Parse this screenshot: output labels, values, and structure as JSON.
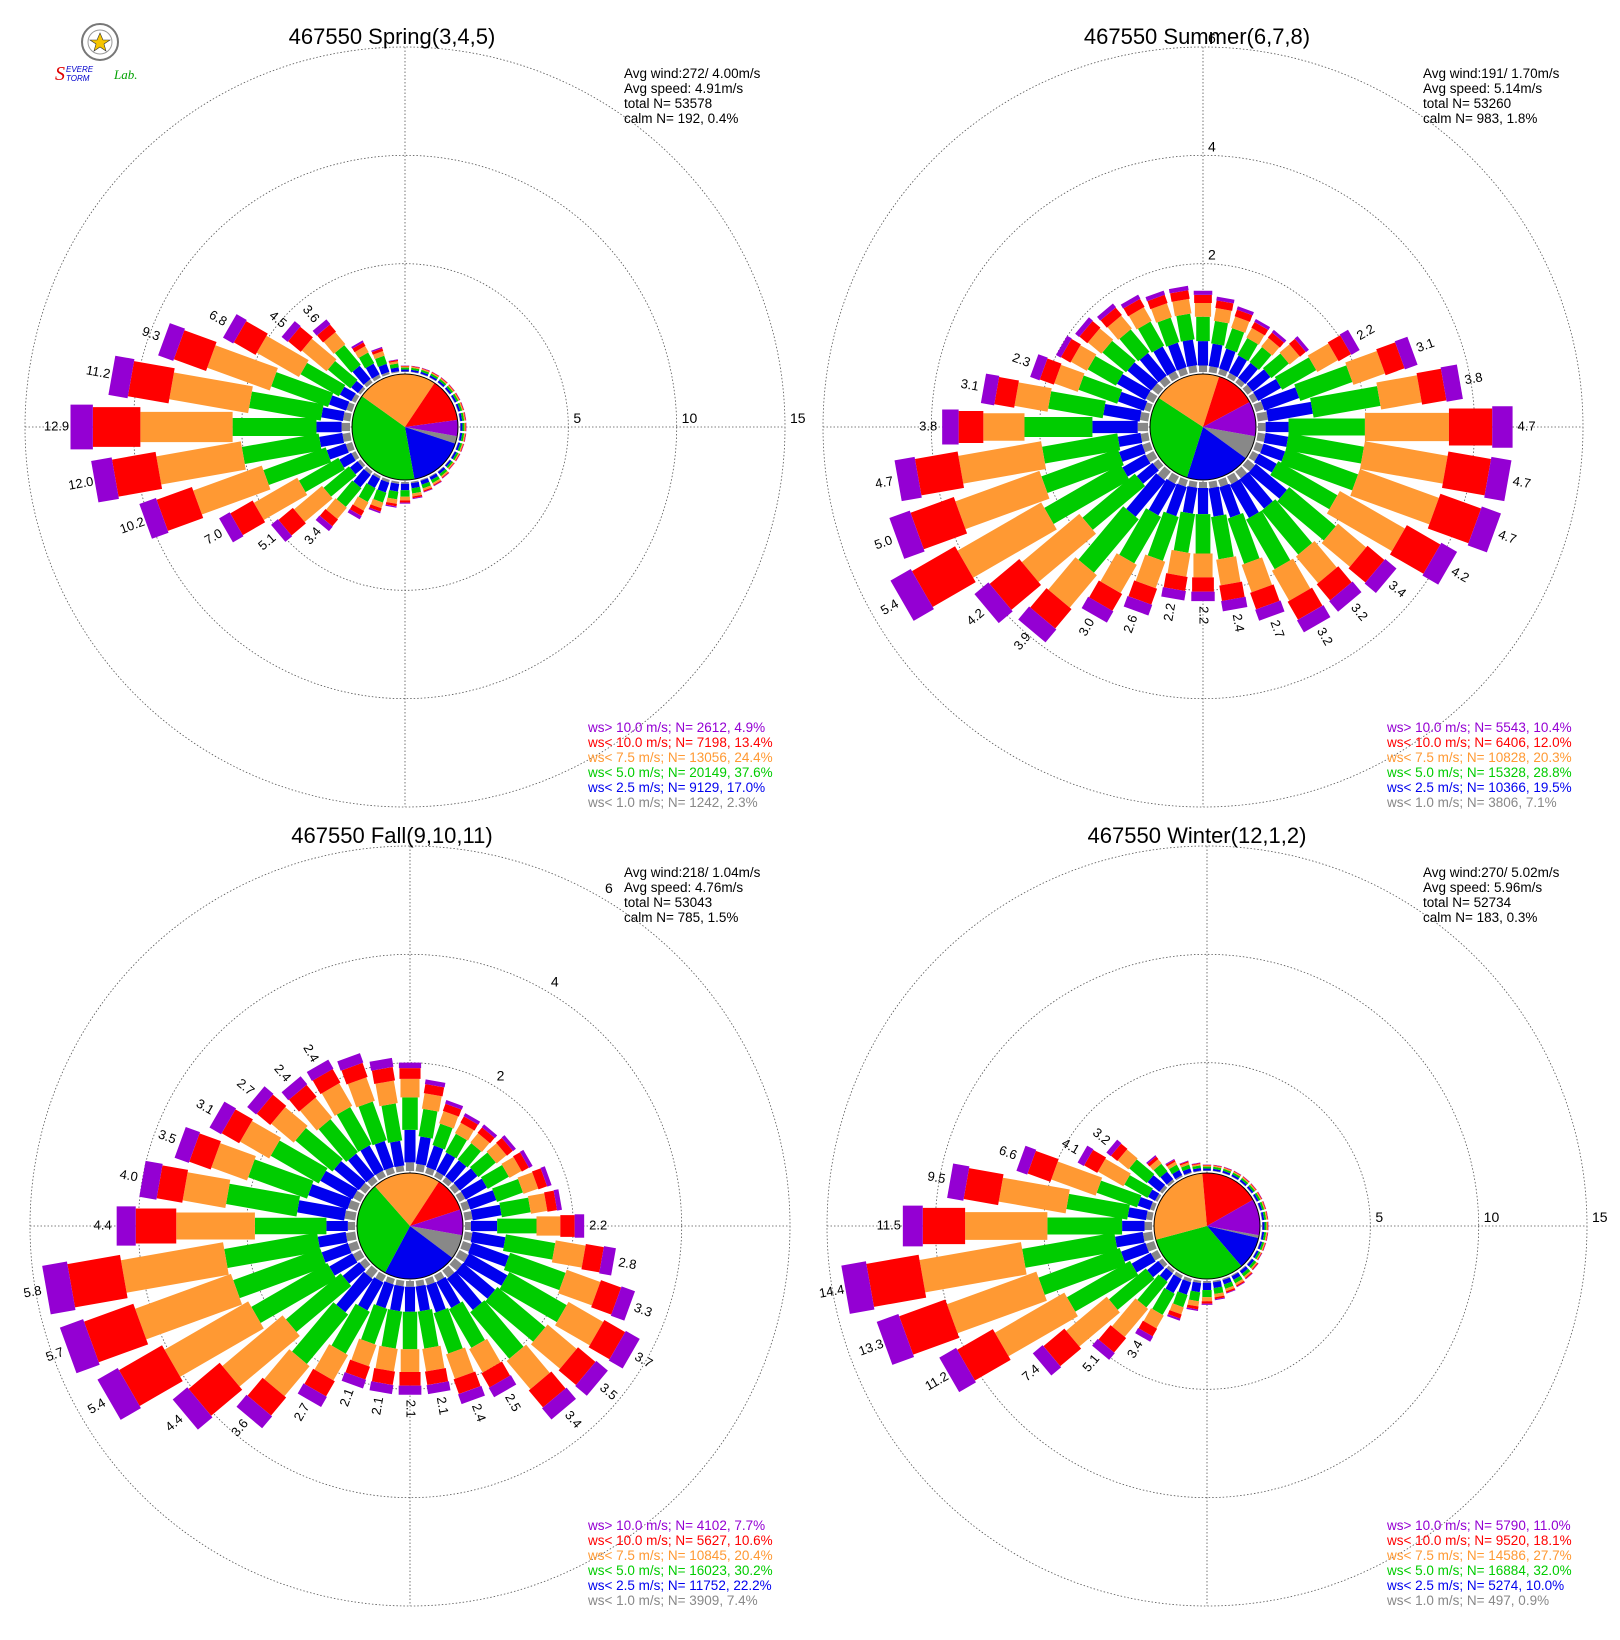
{
  "logo": {
    "text_parts": [
      "S",
      "EVERE",
      "TORM",
      "Lab."
    ],
    "colors": [
      "#e00000",
      "#0000cc",
      "#00a000"
    ]
  },
  "speed_classes": [
    {
      "key": "gt10",
      "color": "#9400d3"
    },
    {
      "key": "lt10",
      "color": "#ff0000"
    },
    {
      "key": "lt7_5",
      "color": "#ff9933"
    },
    {
      "key": "lt5",
      "color": "#00cc00"
    },
    {
      "key": "lt2_5",
      "color": "#0000ee"
    },
    {
      "key": "lt1",
      "color": "#888888"
    }
  ],
  "chart_data": [
    {
      "type": "wind-rose",
      "title": "467550 Spring(3,4,5)",
      "stats": [
        "Avg wind:272/ 4.00m/s",
        "Avg speed: 4.91m/s",
        "total N=      53578",
        "calm N=    192,   0.4%"
      ],
      "rmax": 15,
      "ring_labels": [
        "5",
        "10",
        "15"
      ],
      "ring_label_angle": 90,
      "bar_labels": [
        {
          "dir": 270,
          "label": "12.9"
        },
        {
          "dir": 260,
          "label": "12.0"
        },
        {
          "dir": 280,
          "label": "11.2"
        },
        {
          "dir": 250,
          "label": "10.2"
        },
        {
          "dir": 290,
          "label": "9.3"
        },
        {
          "dir": 240,
          "label": "7.0"
        },
        {
          "dir": 300,
          "label": "6.8"
        },
        {
          "dir": 230,
          "label": "5.1"
        },
        {
          "dir": 310,
          "label": "4.5"
        },
        {
          "dir": 220,
          "label": "3.4"
        },
        {
          "dir": 320,
          "label": "3.6"
        }
      ],
      "pie": [
        2.3,
        17.0,
        37.6,
        24.4,
        13.4,
        4.9
      ],
      "pie_start_dir": 100,
      "legend": [
        "ws> 10.0 m/s; N=  2612,  4.9%",
        "ws< 10.0 m/s; N=  7198, 13.4%",
        "ws<  7.5 m/s; N= 13056, 24.4%",
        "ws<  5.0 m/s; N= 20149, 37.6%",
        "ws<  2.5 m/s; N=  9129, 17.0%",
        "ws<  1.0 m/s; N=  1242,  2.3%"
      ],
      "directions": [
        {
          "dir": 0,
          "total": 0.3
        },
        {
          "dir": 10,
          "total": 0.3
        },
        {
          "dir": 20,
          "total": 0.3
        },
        {
          "dir": 30,
          "total": 0.3
        },
        {
          "dir": 40,
          "total": 0.3
        },
        {
          "dir": 50,
          "total": 0.3
        },
        {
          "dir": 60,
          "total": 0.3
        },
        {
          "dir": 70,
          "total": 0.3
        },
        {
          "dir": 80,
          "total": 0.3
        },
        {
          "dir": 90,
          "total": 0.3
        },
        {
          "dir": 100,
          "total": 0.3
        },
        {
          "dir": 110,
          "total": 0.3
        },
        {
          "dir": 120,
          "total": 0.3
        },
        {
          "dir": 130,
          "total": 0.3
        },
        {
          "dir": 140,
          "total": 0.4
        },
        {
          "dir": 150,
          "total": 0.5
        },
        {
          "dir": 160,
          "total": 0.6
        },
        {
          "dir": 170,
          "total": 0.8
        },
        {
          "dir": 180,
          "total": 1.0
        },
        {
          "dir": 190,
          "total": 1.2
        },
        {
          "dir": 200,
          "total": 1.6
        },
        {
          "dir": 210,
          "total": 2.2
        },
        {
          "dir": 220,
          "total": 3.4
        },
        {
          "dir": 230,
          "total": 5.1
        },
        {
          "dir": 240,
          "total": 7.0
        },
        {
          "dir": 250,
          "total": 10.2
        },
        {
          "dir": 260,
          "total": 12.0
        },
        {
          "dir": 270,
          "total": 12.9
        },
        {
          "dir": 280,
          "total": 11.2
        },
        {
          "dir": 290,
          "total": 9.3
        },
        {
          "dir": 300,
          "total": 6.8
        },
        {
          "dir": 310,
          "total": 4.5
        },
        {
          "dir": 320,
          "total": 3.6
        },
        {
          "dir": 330,
          "total": 1.9
        },
        {
          "dir": 340,
          "total": 1.3
        },
        {
          "dir": 350,
          "total": 0.6
        }
      ]
    },
    {
      "type": "wind-rose",
      "title": "467550 Summer(6,7,8)",
      "stats": [
        "Avg wind:191/ 1.70m/s",
        "Avg speed: 5.14m/s",
        "total N=      53260",
        "calm N=    983,   1.8%"
      ],
      "rmax": 6,
      "ring_labels": [
        "2",
        "4",
        "6"
      ],
      "ring_label_angle": 0,
      "bar_labels": [
        {
          "dir": 290,
          "label": "2.3"
        },
        {
          "dir": 280,
          "label": "3.1"
        },
        {
          "dir": 270,
          "label": "3.8"
        },
        {
          "dir": 260,
          "label": "4.7"
        },
        {
          "dir": 250,
          "label": "5.0"
        },
        {
          "dir": 240,
          "label": "5.4"
        },
        {
          "dir": 230,
          "label": "4.2"
        },
        {
          "dir": 220,
          "label": "3.9"
        },
        {
          "dir": 210,
          "label": "3.0"
        },
        {
          "dir": 200,
          "label": "2.6"
        },
        {
          "dir": 190,
          "label": "2.2"
        },
        {
          "dir": 180,
          "label": "2.2"
        },
        {
          "dir": 170,
          "label": "2.4"
        },
        {
          "dir": 160,
          "label": "2.7"
        },
        {
          "dir": 150,
          "label": "3.2"
        },
        {
          "dir": 140,
          "label": "3.2"
        },
        {
          "dir": 130,
          "label": "3.4"
        },
        {
          "dir": 120,
          "label": "4.2"
        },
        {
          "dir": 110,
          "label": "4.7"
        },
        {
          "dir": 100,
          "label": "4.7"
        },
        {
          "dir": 90,
          "label": "4.7"
        },
        {
          "dir": 80,
          "label": "3.8"
        },
        {
          "dir": 70,
          "label": "3.1"
        },
        {
          "dir": 60,
          "label": "2.2"
        }
      ],
      "pie": [
        7.1,
        19.5,
        28.8,
        20.3,
        12.0,
        10.4
      ],
      "pie_start_dir": 100,
      "legend": [
        "ws> 10.0 m/s; N=  5543, 10.4%",
        "ws< 10.0 m/s; N=  6406, 12.0%",
        "ws<  7.5 m/s; N= 10828, 20.3%",
        "ws<  5.0 m/s; N= 15328, 28.8%",
        "ws<  2.5 m/s; N= 10366, 19.5%",
        "ws<  1.0 m/s; N=  3806,  7.1%"
      ],
      "directions": [
        {
          "dir": 0,
          "total": 1.5
        },
        {
          "dir": 10,
          "total": 1.4
        },
        {
          "dir": 20,
          "total": 1.3
        },
        {
          "dir": 30,
          "total": 1.2
        },
        {
          "dir": 40,
          "total": 1.2
        },
        {
          "dir": 50,
          "total": 1.4
        },
        {
          "dir": 60,
          "total": 2.2
        },
        {
          "dir": 70,
          "total": 3.1
        },
        {
          "dir": 80,
          "total": 3.8
        },
        {
          "dir": 90,
          "total": 4.7
        },
        {
          "dir": 100,
          "total": 4.7
        },
        {
          "dir": 110,
          "total": 4.7
        },
        {
          "dir": 120,
          "total": 4.2
        },
        {
          "dir": 130,
          "total": 3.4
        },
        {
          "dir": 140,
          "total": 3.2
        },
        {
          "dir": 150,
          "total": 3.2
        },
        {
          "dir": 160,
          "total": 2.7
        },
        {
          "dir": 170,
          "total": 2.4
        },
        {
          "dir": 180,
          "total": 2.2
        },
        {
          "dir": 190,
          "total": 2.2
        },
        {
          "dir": 200,
          "total": 2.6
        },
        {
          "dir": 210,
          "total": 3.0
        },
        {
          "dir": 220,
          "total": 3.9
        },
        {
          "dir": 230,
          "total": 4.2
        },
        {
          "dir": 240,
          "total": 5.4
        },
        {
          "dir": 250,
          "total": 5.0
        },
        {
          "dir": 260,
          "total": 4.7
        },
        {
          "dir": 270,
          "total": 3.8
        },
        {
          "dir": 280,
          "total": 3.1
        },
        {
          "dir": 290,
          "total": 2.3
        },
        {
          "dir": 300,
          "total": 2.0
        },
        {
          "dir": 310,
          "total": 1.9
        },
        {
          "dir": 320,
          "total": 1.8
        },
        {
          "dir": 330,
          "total": 1.7
        },
        {
          "dir": 340,
          "total": 1.6
        },
        {
          "dir": 350,
          "total": 1.6
        }
      ]
    },
    {
      "type": "wind-rose",
      "title": "467550 Fall(9,10,11)",
      "stats": [
        "Avg wind:218/ 1.04m/s",
        "Avg speed: 4.76m/s",
        "total N=      53043",
        "calm N=    785,   1.5%"
      ],
      "rmax": 6,
      "ring_labels": [
        "2",
        "4",
        "6"
      ],
      "ring_label_angle": 30,
      "bar_labels": [
        {
          "dir": 330,
          "label": "2.4"
        },
        {
          "dir": 320,
          "label": "2.4"
        },
        {
          "dir": 310,
          "label": "2.7"
        },
        {
          "dir": 300,
          "label": "3.1"
        },
        {
          "dir": 290,
          "label": "3.5"
        },
        {
          "dir": 280,
          "label": "4.0"
        },
        {
          "dir": 270,
          "label": "4.4"
        },
        {
          "dir": 260,
          "label": "5.8"
        },
        {
          "dir": 250,
          "label": "5.7"
        },
        {
          "dir": 240,
          "label": "5.4"
        },
        {
          "dir": 230,
          "label": "4.4"
        },
        {
          "dir": 220,
          "label": "3.6"
        },
        {
          "dir": 210,
          "label": "2.7"
        },
        {
          "dir": 200,
          "label": "2.1"
        },
        {
          "dir": 190,
          "label": "2.1"
        },
        {
          "dir": 180,
          "label": "2.1"
        },
        {
          "dir": 170,
          "label": "2.1"
        },
        {
          "dir": 160,
          "label": "2.4"
        },
        {
          "dir": 150,
          "label": "2.5"
        },
        {
          "dir": 140,
          "label": "3.4"
        },
        {
          "dir": 130,
          "label": "3.5"
        },
        {
          "dir": 120,
          "label": "3.7"
        },
        {
          "dir": 110,
          "label": "3.3"
        },
        {
          "dir": 100,
          "label": "2.8"
        },
        {
          "dir": 90,
          "label": "2.2"
        }
      ],
      "pie": [
        7.4,
        22.2,
        30.2,
        20.4,
        10.6,
        7.7
      ],
      "pie_start_dir": 100,
      "legend": [
        "ws> 10.0 m/s; N=  4102,  7.7%",
        "ws< 10.0 m/s; N=  5627, 10.6%",
        "ws<  7.5 m/s; N= 10845, 20.4%",
        "ws<  5.0 m/s; N= 16023, 30.2%",
        "ws<  2.5 m/s; N= 11752, 22.2%",
        "ws<  1.0 m/s; N=  3909,  7.4%"
      ],
      "directions": [
        {
          "dir": 0,
          "total": 2.0
        },
        {
          "dir": 10,
          "total": 1.7
        },
        {
          "dir": 20,
          "total": 1.4
        },
        {
          "dir": 30,
          "total": 1.3
        },
        {
          "dir": 40,
          "total": 1.3
        },
        {
          "dir": 50,
          "total": 1.4
        },
        {
          "dir": 60,
          "total": 1.5
        },
        {
          "dir": 70,
          "total": 1.7
        },
        {
          "dir": 80,
          "total": 1.8
        },
        {
          "dir": 90,
          "total": 2.2
        },
        {
          "dir": 100,
          "total": 2.8
        },
        {
          "dir": 110,
          "total": 3.3
        },
        {
          "dir": 120,
          "total": 3.7
        },
        {
          "dir": 130,
          "total": 3.5
        },
        {
          "dir": 140,
          "total": 3.4
        },
        {
          "dir": 150,
          "total": 2.5
        },
        {
          "dir": 160,
          "total": 2.4
        },
        {
          "dir": 170,
          "total": 2.1
        },
        {
          "dir": 180,
          "total": 2.1
        },
        {
          "dir": 190,
          "total": 2.1
        },
        {
          "dir": 200,
          "total": 2.1
        },
        {
          "dir": 210,
          "total": 2.7
        },
        {
          "dir": 220,
          "total": 3.6
        },
        {
          "dir": 230,
          "total": 4.4
        },
        {
          "dir": 240,
          "total": 5.4
        },
        {
          "dir": 250,
          "total": 5.7
        },
        {
          "dir": 260,
          "total": 5.8
        },
        {
          "dir": 270,
          "total": 4.4
        },
        {
          "dir": 280,
          "total": 4.0
        },
        {
          "dir": 290,
          "total": 3.5
        },
        {
          "dir": 300,
          "total": 3.1
        },
        {
          "dir": 310,
          "total": 2.7
        },
        {
          "dir": 320,
          "total": 2.4
        },
        {
          "dir": 330,
          "total": 2.4
        },
        {
          "dir": 340,
          "total": 2.3
        },
        {
          "dir": 350,
          "total": 2.1
        }
      ]
    },
    {
      "type": "wind-rose",
      "title": "467550 Winter(12,1,2)",
      "stats": [
        "Avg wind:270/ 5.02m/s",
        "Avg speed: 5.96m/s",
        "total N=      52734",
        "calm N=    183,   0.3%"
      ],
      "rmax": 15,
      "ring_labels": [
        "5",
        "10",
        "15"
      ],
      "ring_label_angle": 90,
      "bar_labels": [
        {
          "dir": 260,
          "label": "14.4"
        },
        {
          "dir": 250,
          "label": "13.3"
        },
        {
          "dir": 270,
          "label": "11.5"
        },
        {
          "dir": 240,
          "label": "11.2"
        },
        {
          "dir": 280,
          "label": "9.5"
        },
        {
          "dir": 230,
          "label": "7.4"
        },
        {
          "dir": 290,
          "label": "6.6"
        },
        {
          "dir": 220,
          "label": "5.1"
        },
        {
          "dir": 300,
          "label": "4.1"
        },
        {
          "dir": 210,
          "label": "3.4"
        },
        {
          "dir": 310,
          "label": "3.2"
        }
      ],
      "pie": [
        0.9,
        10.0,
        32.0,
        27.7,
        18.1,
        11.0
      ],
      "pie_start_dir": 100,
      "legend": [
        "ws> 10.0 m/s; N=  5790, 11.0%",
        "ws< 10.0 m/s; N=  9520, 18.1%",
        "ws<  7.5 m/s; N= 14586, 27.7%",
        "ws<  5.0 m/s; N= 16884, 32.0%",
        "ws<  2.5 m/s; N=  5274, 10.0%",
        "ws<  1.0 m/s; N=   497,  0.9%"
      ],
      "directions": [
        {
          "dir": 0,
          "total": 0.3
        },
        {
          "dir": 10,
          "total": 0.3
        },
        {
          "dir": 20,
          "total": 0.3
        },
        {
          "dir": 30,
          "total": 0.3
        },
        {
          "dir": 40,
          "total": 0.3
        },
        {
          "dir": 50,
          "total": 0.3
        },
        {
          "dir": 60,
          "total": 0.3
        },
        {
          "dir": 70,
          "total": 0.3
        },
        {
          "dir": 80,
          "total": 0.3
        },
        {
          "dir": 90,
          "total": 0.3
        },
        {
          "dir": 100,
          "total": 0.3
        },
        {
          "dir": 110,
          "total": 0.3
        },
        {
          "dir": 120,
          "total": 0.3
        },
        {
          "dir": 130,
          "total": 0.4
        },
        {
          "dir": 140,
          "total": 0.5
        },
        {
          "dir": 150,
          "total": 0.6
        },
        {
          "dir": 160,
          "total": 0.7
        },
        {
          "dir": 170,
          "total": 0.9
        },
        {
          "dir": 180,
          "total": 1.1
        },
        {
          "dir": 190,
          "total": 1.4
        },
        {
          "dir": 200,
          "total": 2.0
        },
        {
          "dir": 210,
          "total": 3.4
        },
        {
          "dir": 220,
          "total": 5.1
        },
        {
          "dir": 230,
          "total": 7.4
        },
        {
          "dir": 240,
          "total": 11.2
        },
        {
          "dir": 250,
          "total": 13.3
        },
        {
          "dir": 260,
          "total": 14.4
        },
        {
          "dir": 270,
          "total": 11.5
        },
        {
          "dir": 280,
          "total": 9.5
        },
        {
          "dir": 290,
          "total": 6.6
        },
        {
          "dir": 300,
          "total": 4.1
        },
        {
          "dir": 310,
          "total": 3.2
        },
        {
          "dir": 320,
          "total": 1.5
        },
        {
          "dir": 330,
          "total": 0.9
        },
        {
          "dir": 340,
          "total": 0.6
        },
        {
          "dir": 350,
          "total": 0.4
        }
      ]
    }
  ]
}
